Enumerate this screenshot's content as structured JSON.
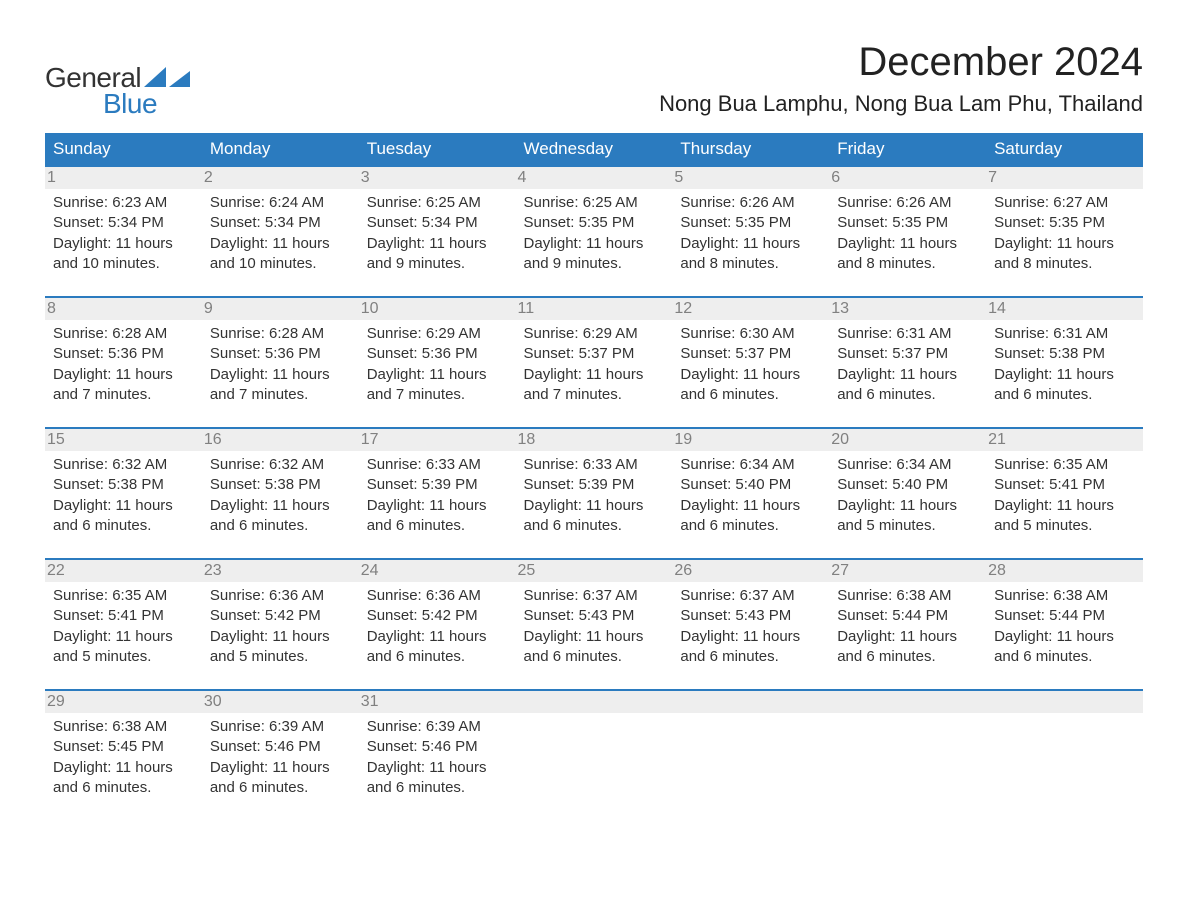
{
  "logo": {
    "word1": "General",
    "word2": "Blue",
    "gray": "#333333",
    "blue": "#2b7bbf"
  },
  "title": "December 2024",
  "location": "Nong Bua Lamphu, Nong Bua Lam Phu, Thailand",
  "columns": [
    "Sunday",
    "Monday",
    "Tuesday",
    "Wednesday",
    "Thursday",
    "Friday",
    "Saturday"
  ],
  "colors": {
    "header_bg": "#2b7bbf",
    "header_text": "#ffffff",
    "row_border": "#2b7bbf",
    "daynum_bg": "#eeeeee",
    "daynum_text": "#808080",
    "body_text": "#333333",
    "background": "#ffffff"
  },
  "typography": {
    "title_fontsize": 40,
    "location_fontsize": 22,
    "header_fontsize": 17,
    "daynum_fontsize": 16,
    "body_fontsize": 15
  },
  "weeks": [
    [
      {
        "n": "1",
        "sunrise": "6:23 AM",
        "sunset": "5:34 PM",
        "daylight": "11 hours and 10 minutes."
      },
      {
        "n": "2",
        "sunrise": "6:24 AM",
        "sunset": "5:34 PM",
        "daylight": "11 hours and 10 minutes."
      },
      {
        "n": "3",
        "sunrise": "6:25 AM",
        "sunset": "5:34 PM",
        "daylight": "11 hours and 9 minutes."
      },
      {
        "n": "4",
        "sunrise": "6:25 AM",
        "sunset": "5:35 PM",
        "daylight": "11 hours and 9 minutes."
      },
      {
        "n": "5",
        "sunrise": "6:26 AM",
        "sunset": "5:35 PM",
        "daylight": "11 hours and 8 minutes."
      },
      {
        "n": "6",
        "sunrise": "6:26 AM",
        "sunset": "5:35 PM",
        "daylight": "11 hours and 8 minutes."
      },
      {
        "n": "7",
        "sunrise": "6:27 AM",
        "sunset": "5:35 PM",
        "daylight": "11 hours and 8 minutes."
      }
    ],
    [
      {
        "n": "8",
        "sunrise": "6:28 AM",
        "sunset": "5:36 PM",
        "daylight": "11 hours and 7 minutes."
      },
      {
        "n": "9",
        "sunrise": "6:28 AM",
        "sunset": "5:36 PM",
        "daylight": "11 hours and 7 minutes."
      },
      {
        "n": "10",
        "sunrise": "6:29 AM",
        "sunset": "5:36 PM",
        "daylight": "11 hours and 7 minutes."
      },
      {
        "n": "11",
        "sunrise": "6:29 AM",
        "sunset": "5:37 PM",
        "daylight": "11 hours and 7 minutes."
      },
      {
        "n": "12",
        "sunrise": "6:30 AM",
        "sunset": "5:37 PM",
        "daylight": "11 hours and 6 minutes."
      },
      {
        "n": "13",
        "sunrise": "6:31 AM",
        "sunset": "5:37 PM",
        "daylight": "11 hours and 6 minutes."
      },
      {
        "n": "14",
        "sunrise": "6:31 AM",
        "sunset": "5:38 PM",
        "daylight": "11 hours and 6 minutes."
      }
    ],
    [
      {
        "n": "15",
        "sunrise": "6:32 AM",
        "sunset": "5:38 PM",
        "daylight": "11 hours and 6 minutes."
      },
      {
        "n": "16",
        "sunrise": "6:32 AM",
        "sunset": "5:38 PM",
        "daylight": "11 hours and 6 minutes."
      },
      {
        "n": "17",
        "sunrise": "6:33 AM",
        "sunset": "5:39 PM",
        "daylight": "11 hours and 6 minutes."
      },
      {
        "n": "18",
        "sunrise": "6:33 AM",
        "sunset": "5:39 PM",
        "daylight": "11 hours and 6 minutes."
      },
      {
        "n": "19",
        "sunrise": "6:34 AM",
        "sunset": "5:40 PM",
        "daylight": "11 hours and 6 minutes."
      },
      {
        "n": "20",
        "sunrise": "6:34 AM",
        "sunset": "5:40 PM",
        "daylight": "11 hours and 5 minutes."
      },
      {
        "n": "21",
        "sunrise": "6:35 AM",
        "sunset": "5:41 PM",
        "daylight": "11 hours and 5 minutes."
      }
    ],
    [
      {
        "n": "22",
        "sunrise": "6:35 AM",
        "sunset": "5:41 PM",
        "daylight": "11 hours and 5 minutes."
      },
      {
        "n": "23",
        "sunrise": "6:36 AM",
        "sunset": "5:42 PM",
        "daylight": "11 hours and 5 minutes."
      },
      {
        "n": "24",
        "sunrise": "6:36 AM",
        "sunset": "5:42 PM",
        "daylight": "11 hours and 6 minutes."
      },
      {
        "n": "25",
        "sunrise": "6:37 AM",
        "sunset": "5:43 PM",
        "daylight": "11 hours and 6 minutes."
      },
      {
        "n": "26",
        "sunrise": "6:37 AM",
        "sunset": "5:43 PM",
        "daylight": "11 hours and 6 minutes."
      },
      {
        "n": "27",
        "sunrise": "6:38 AM",
        "sunset": "5:44 PM",
        "daylight": "11 hours and 6 minutes."
      },
      {
        "n": "28",
        "sunrise": "6:38 AM",
        "sunset": "5:44 PM",
        "daylight": "11 hours and 6 minutes."
      }
    ],
    [
      {
        "n": "29",
        "sunrise": "6:38 AM",
        "sunset": "5:45 PM",
        "daylight": "11 hours and 6 minutes."
      },
      {
        "n": "30",
        "sunrise": "6:39 AM",
        "sunset": "5:46 PM",
        "daylight": "11 hours and 6 minutes."
      },
      {
        "n": "31",
        "sunrise": "6:39 AM",
        "sunset": "5:46 PM",
        "daylight": "11 hours and 6 minutes."
      },
      null,
      null,
      null,
      null
    ]
  ],
  "labels": {
    "sunrise": "Sunrise: ",
    "sunset": "Sunset: ",
    "daylight": "Daylight: "
  }
}
